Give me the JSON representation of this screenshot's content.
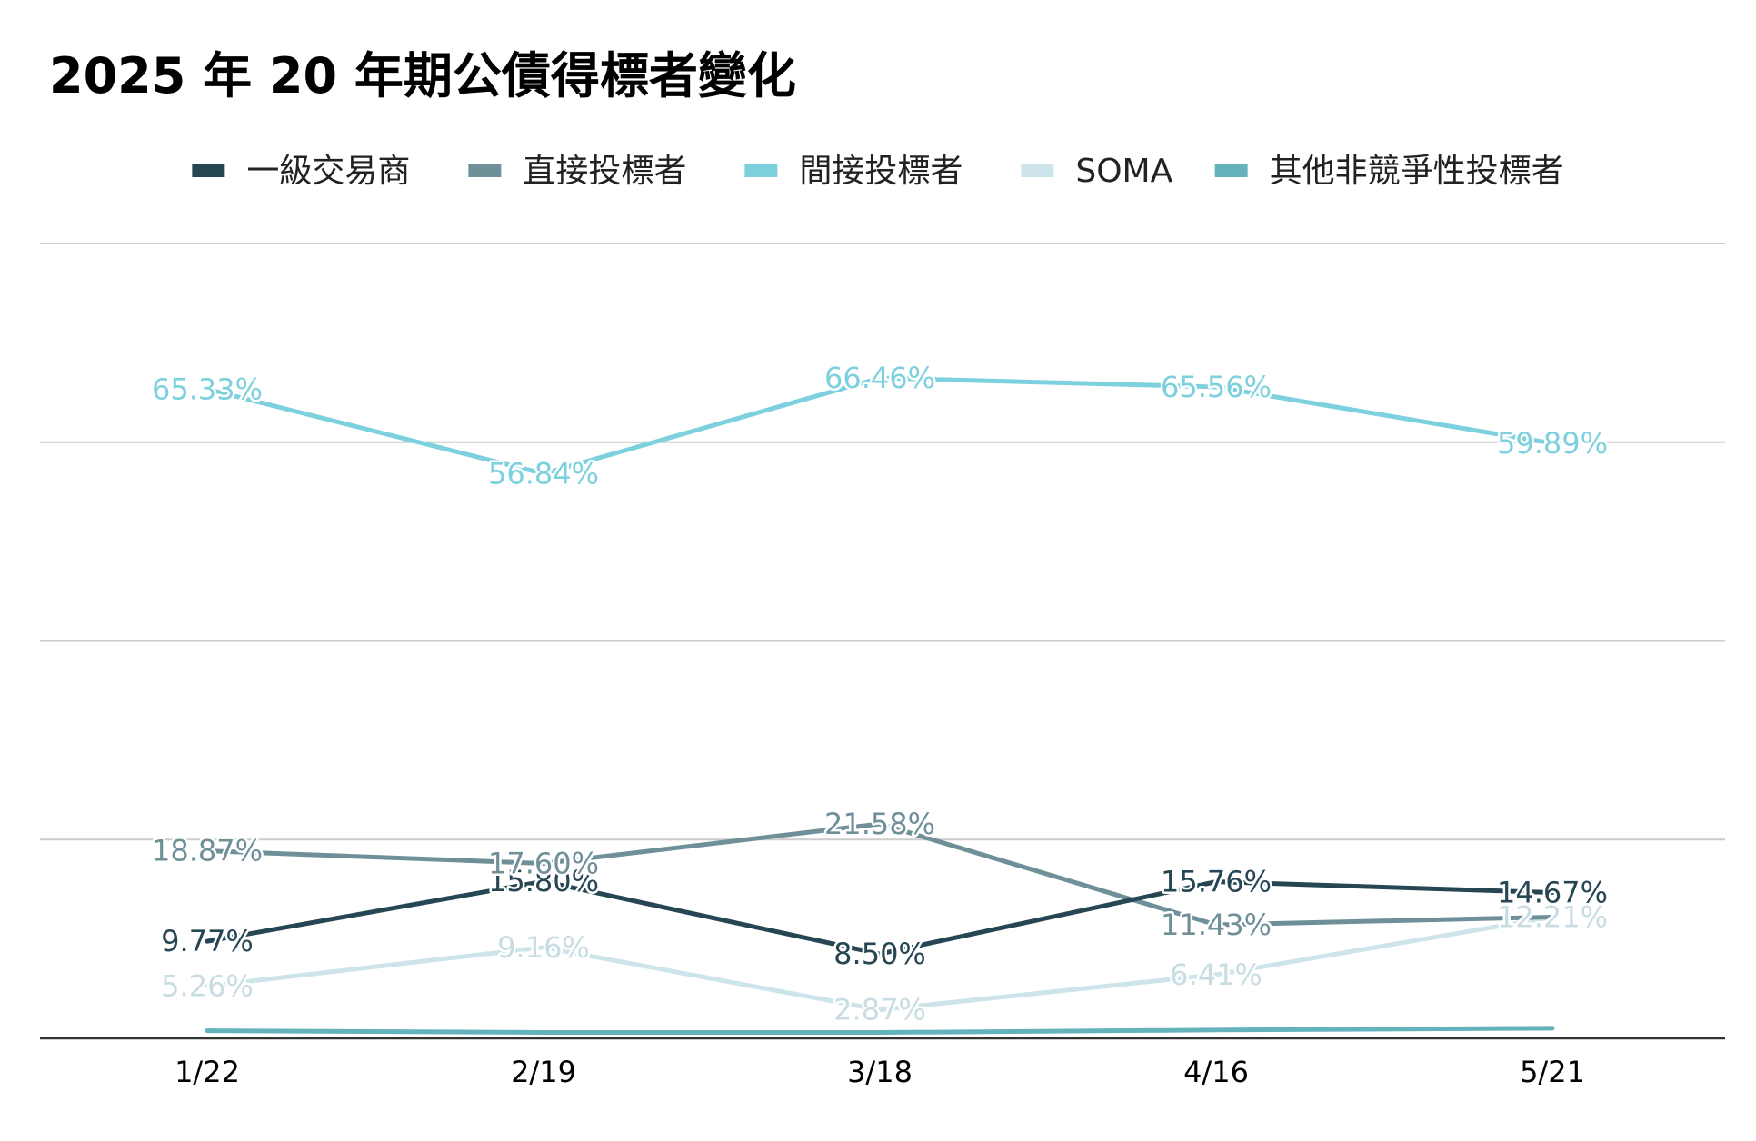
{
  "chart_data": {
    "type": "line",
    "title": "2025 年 20 年期公債得標者變化",
    "xlabel": "",
    "ylabel": "",
    "categories": [
      "1/22",
      "2/19",
      "3/18",
      "4/16",
      "5/21"
    ],
    "ylim": [
      0,
      80
    ],
    "y_gridlines": [
      20,
      40,
      60,
      80
    ],
    "y_tick_labels_shown": false,
    "grid": true,
    "legend_position": "top",
    "series": [
      {
        "name": "一級交易商",
        "color": "#264653",
        "values": [
          9.77,
          15.8,
          8.5,
          15.76,
          14.67
        ],
        "labels": [
          "9.77%",
          "15.80%",
          "8.50%",
          "15.76%",
          "14.67%"
        ],
        "label_color": "#264653"
      },
      {
        "name": "直接投標者",
        "color": "#6f9098",
        "values": [
          18.87,
          17.6,
          21.58,
          11.43,
          12.21
        ],
        "labels": [
          "18.87%",
          "17.60%",
          "21.58%",
          "11.43%",
          "12.21%"
        ],
        "label_color": "#6f9098"
      },
      {
        "name": "間接投標者",
        "color": "#7dd1de",
        "values": [
          65.33,
          56.84,
          66.46,
          65.56,
          59.89
        ],
        "labels": [
          "65.33%",
          "56.84%",
          "66.46%",
          "65.56%",
          "59.89%"
        ],
        "label_color": "#7dd1de"
      },
      {
        "name": "SOMA",
        "color": "#cde5ea",
        "values": [
          5.26,
          9.16,
          2.87,
          6.41,
          12.21
        ],
        "labels": [
          "5.26%",
          "9.16%",
          "2.87%",
          "6.41%",
          "12.21%"
        ],
        "label_color": "#c8dde2"
      },
      {
        "name": "其他非競爭性投標者",
        "color": "#63b2bc",
        "values": [
          0.77,
          0.6,
          0.59,
          0.84,
          1.02
        ],
        "labels": [],
        "label_color": "#63b2bc"
      }
    ]
  }
}
